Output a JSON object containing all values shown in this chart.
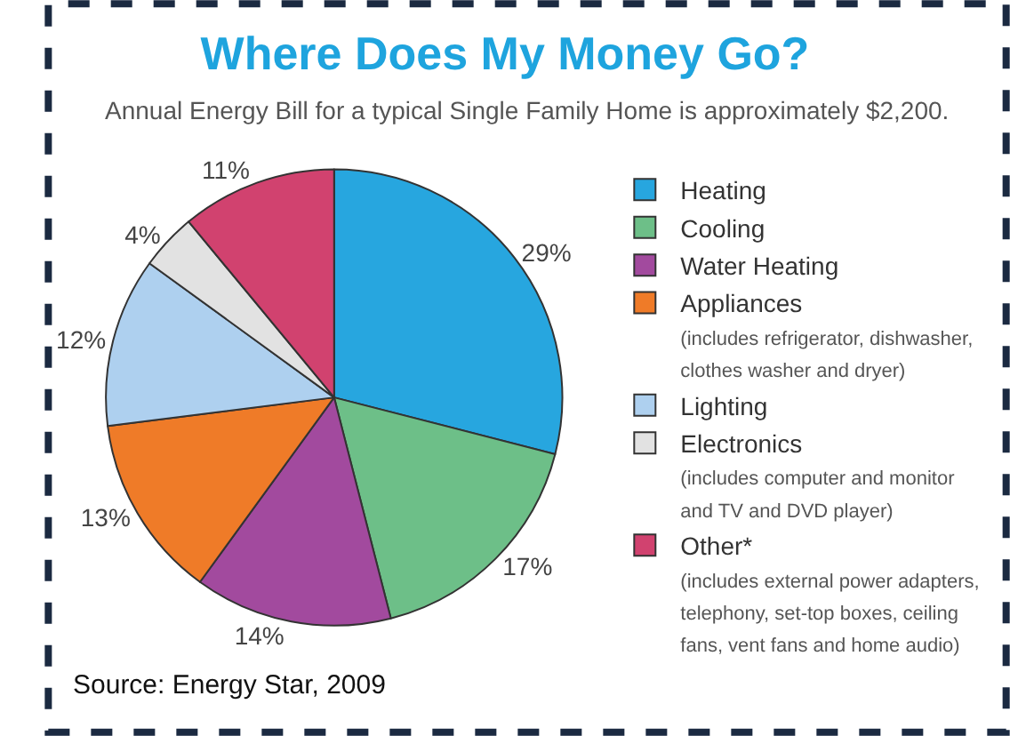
{
  "chart_data": {
    "type": "pie",
    "title": "Where Does My Money Go?",
    "subtitle": "Annual Energy Bill for a typical Single Family Home is approximately $2,200.",
    "categories": [
      "Heating",
      "Cooling",
      "Water Heating",
      "Appliances\n(includes refrigerator, dishwasher,\nclothes washer and dryer)",
      "Lighting",
      "Electronics\n(includes computer and monitor\nand TV and DVD player)",
      "Other*\n(includes external power adapters,\ntelephony, set-top boxes, ceiling\nfans, vent fans and home audio)"
    ],
    "values": [
      29,
      17,
      14,
      13,
      12,
      4,
      11
    ],
    "colors": [
      "#27a6df",
      "#6dbf88",
      "#a24a9e",
      "#ef7b28",
      "#aed0ef",
      "#e2e2e2",
      "#d1426f"
    ],
    "value_labels": [
      "29%",
      "17%",
      "14%",
      "13%",
      "12%",
      "4%",
      "11%"
    ],
    "legend": "right",
    "annotations": [
      "Source: Energy Star, 2009"
    ]
  }
}
